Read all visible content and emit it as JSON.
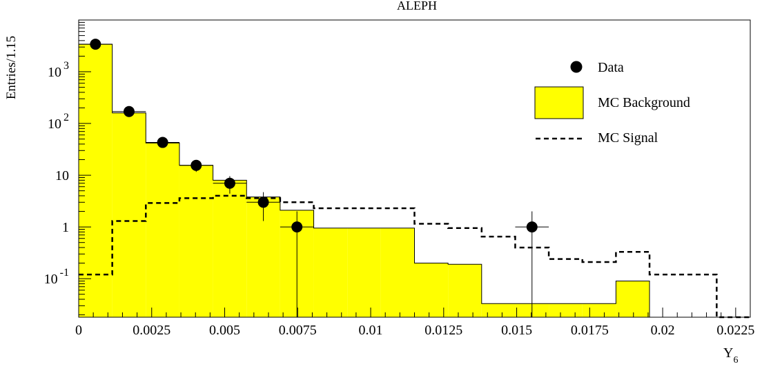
{
  "chart_data": {
    "type": "histogram",
    "title": "ALEPH",
    "xlabel": "Y",
    "xlabel_subscript": "6",
    "ylabel": "Entries/1.15",
    "yscale": "log",
    "xlim": [
      0,
      0.023
    ],
    "ylim": [
      0.018,
      10000
    ],
    "xticks": [
      {
        "value": 0,
        "label": "0"
      },
      {
        "value": 0.0025,
        "label": "0.0025"
      },
      {
        "value": 0.005,
        "label": "0.005"
      },
      {
        "value": 0.0075,
        "label": "0.0075"
      },
      {
        "value": 0.01,
        "label": "0.01"
      },
      {
        "value": 0.0125,
        "label": "0.0125"
      },
      {
        "value": 0.015,
        "label": "0.015"
      },
      {
        "value": 0.0175,
        "label": "0.0175"
      },
      {
        "value": 0.02,
        "label": "0.02"
      },
      {
        "value": 0.0225,
        "label": "0.0225"
      }
    ],
    "yticks": [
      {
        "value": 1000,
        "base": "10",
        "exp": "3"
      },
      {
        "value": 100,
        "base": "10",
        "exp": "2"
      },
      {
        "value": 10,
        "base": "10",
        "exp": ""
      },
      {
        "value": 1,
        "base": "1",
        "exp": ""
      },
      {
        "value": 0.1,
        "base": "10",
        "exp": "-1"
      }
    ],
    "bin_edges": [
      0,
      0.00115,
      0.0023,
      0.00345,
      0.0046,
      0.00575,
      0.0069,
      0.00805,
      0.0092,
      0.01035,
      0.0115,
      0.01265,
      0.0138,
      0.01495,
      0.0161,
      0.01725,
      0.0184,
      0.01955,
      0.0207,
      0.02185,
      0.023
    ],
    "series": [
      {
        "name": "MC Background",
        "style": "filled-histogram",
        "color": "#ffff00",
        "values": [
          3400,
          160,
          42,
          15.5,
          8,
          3.8,
          2.1,
          0.95,
          0.95,
          0.95,
          0.2,
          0.19,
          0.033,
          0.033,
          0.033,
          0.033,
          0.09,
          0,
          0,
          0
        ]
      },
      {
        "name": "MC Signal",
        "style": "dashed-histogram",
        "color": "#000000",
        "values": [
          0.12,
          1.3,
          2.9,
          3.6,
          4.0,
          3.6,
          3.0,
          2.3,
          2.3,
          2.3,
          1.15,
          0.95,
          0.65,
          0.4,
          0.24,
          0.21,
          0.33,
          0.12,
          0.12,
          0
        ]
      },
      {
        "name": "Data",
        "style": "points",
        "color": "#000000",
        "points": [
          {
            "x": 0.000575,
            "y": 3400,
            "yerr_lo": 58,
            "yerr_hi": 58
          },
          {
            "x": 0.001725,
            "y": 170,
            "yerr_lo": 13,
            "yerr_hi": 13
          },
          {
            "x": 0.002875,
            "y": 43,
            "yerr_lo": 6.5,
            "yerr_hi": 6.5
          },
          {
            "x": 0.004025,
            "y": 15.5,
            "yerr_lo": 3.9,
            "yerr_hi": 3.9
          },
          {
            "x": 0.005175,
            "y": 7,
            "yerr_lo": 2.6,
            "yerr_hi": 2.6
          },
          {
            "x": 0.006325,
            "y": 3,
            "yerr_lo": 1.7,
            "yerr_hi": 1.7
          },
          {
            "x": 0.007475,
            "y": 1,
            "yerr_lo": 1.0,
            "yerr_hi": 1.0
          },
          {
            "x": 0.015525,
            "y": 1,
            "yerr_lo": 1.0,
            "yerr_hi": 1.0
          }
        ]
      }
    ],
    "legend": {
      "position": "top-right",
      "items": [
        {
          "label": "Data",
          "marker": "point"
        },
        {
          "label": "MC Background",
          "marker": "box"
        },
        {
          "label": "MC Signal",
          "marker": "dashed-line"
        }
      ]
    }
  }
}
